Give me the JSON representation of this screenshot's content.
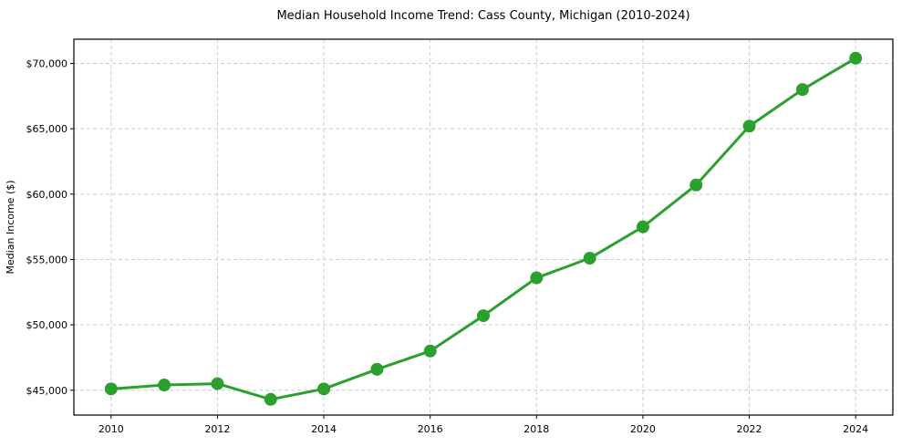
{
  "chart_data": {
    "type": "line",
    "title": "Median Household Income Trend: Cass County, Michigan (2010-2024)",
    "xlabel": "",
    "ylabel": "Median Income ($)",
    "series": [
      {
        "name": "Median Household Income",
        "x": [
          2010,
          2011,
          2012,
          2013,
          2014,
          2015,
          2016,
          2017,
          2018,
          2019,
          2020,
          2021,
          2022,
          2023,
          2024
        ],
        "values": [
          45100,
          45400,
          45500,
          44300,
          45100,
          46600,
          48000,
          50700,
          53600,
          55100,
          57500,
          60700,
          65200,
          68000,
          70400
        ]
      }
    ],
    "xlim": [
      2009.3,
      2024.7
    ],
    "ylim": [
      43100,
      71850
    ],
    "xticks": [
      2010,
      2012,
      2014,
      2016,
      2018,
      2020,
      2022,
      2024
    ],
    "xtick_labels": [
      "2010",
      "2012",
      "2014",
      "2016",
      "2018",
      "2020",
      "2022",
      "2024"
    ],
    "yticks": [
      45000,
      50000,
      55000,
      60000,
      65000,
      70000
    ],
    "ytick_labels": [
      "$45,000",
      "$50,000",
      "$55,000",
      "$60,000",
      "$65,000",
      "$70,000"
    ],
    "grid": true,
    "grid_style": "dashed",
    "legend": "none",
    "colors": {
      "line": "#2ca02c",
      "marker": "#2ca02c",
      "grid": "#cccccc",
      "spine": "#000000",
      "text": "#000000",
      "background": "#ffffff"
    }
  }
}
